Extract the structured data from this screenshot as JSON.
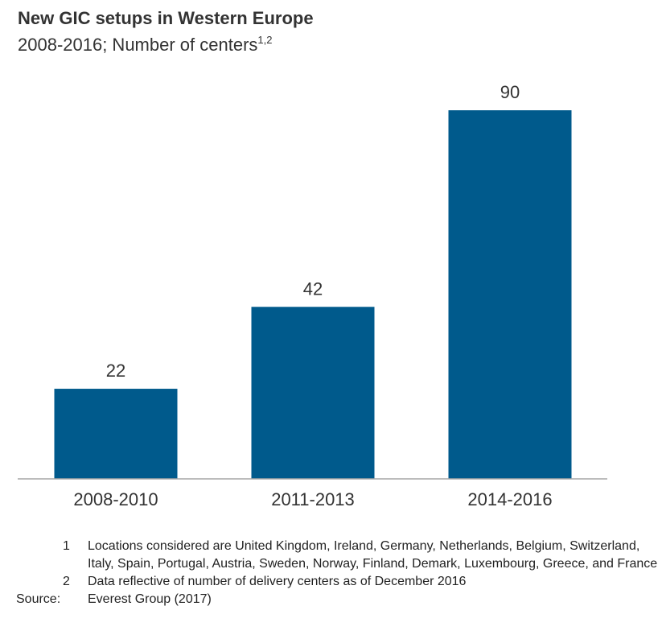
{
  "header": {
    "title": "New GIC setups in Western Europe",
    "subtitle": "2008-2016; Number of centers",
    "subtitle_superscript": "1,2"
  },
  "colors": {
    "bar": "#005a8c",
    "axis": "#a6a6a6",
    "text": "#333333"
  },
  "chart_data": {
    "type": "bar",
    "title": "New GIC setups in Western Europe",
    "subtitle": "2008-2016; Number of centers",
    "categories": [
      "2008-2010",
      "2011-2013",
      "2014-2016"
    ],
    "values": [
      22,
      42,
      90
    ],
    "ylim": [
      0,
      90
    ],
    "grid": false,
    "legend": "none"
  },
  "footnotes": {
    "items": [
      {
        "num": "1",
        "text": "Locations considered are United Kingdom, Ireland, Germany, Netherlands, Belgium, Switzerland, Italy, Spain, Portugal, Austria, Sweden, Norway, Finland, Demark, Luxembourg, Greece, and France"
      },
      {
        "num": "2",
        "text": "Data reflective of number of delivery centers as of December 2016"
      }
    ],
    "source_label": "Source:",
    "source_text": "Everest Group (2017)"
  }
}
